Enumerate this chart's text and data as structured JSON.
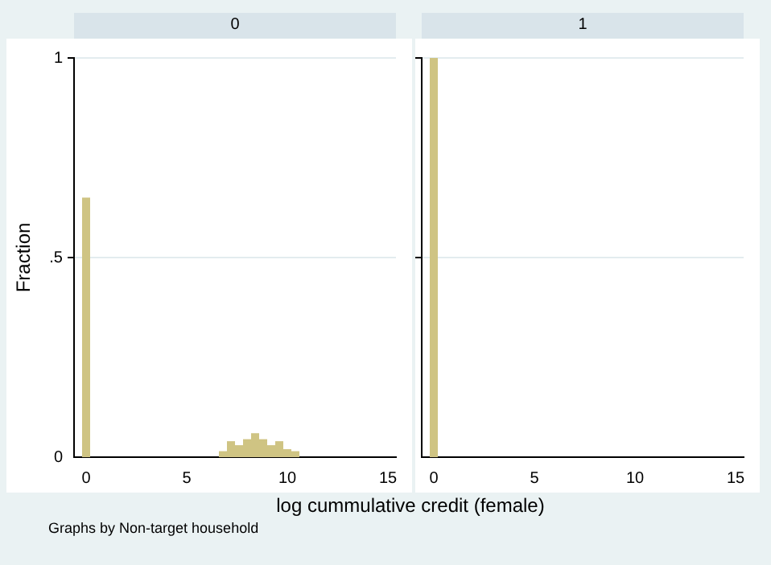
{
  "chart_data": [
    {
      "type": "histogram",
      "title": "0",
      "xlabel": "log cummulative credit (female)",
      "ylabel": "Fraction",
      "annotations": [
        "Graphs by Non-target household"
      ],
      "color": "#cfc483",
      "bins": [
        -0.2,
        0.2,
        0.6,
        1.0,
        1.4,
        1.8,
        2.2,
        2.6,
        3.0,
        3.4,
        3.8,
        4.2,
        4.6,
        5.0,
        5.4,
        5.8,
        6.2,
        6.6,
        7.0,
        7.4,
        7.8,
        8.2,
        8.6,
        9.0,
        9.4,
        9.8,
        10.2,
        10.6
      ],
      "values": [
        0.65,
        0,
        0,
        0,
        0,
        0,
        0,
        0,
        0,
        0,
        0,
        0,
        0,
        0,
        0,
        0,
        0,
        0.015,
        0.04,
        0.03,
        0.045,
        0.06,
        0.045,
        0.03,
        0.04,
        0.02,
        0.015
      ],
      "xlim": [
        -0.6,
        15.4
      ],
      "xticks": [
        0,
        5,
        10,
        15
      ],
      "ylim": [
        0,
        1
      ],
      "yticks": [
        0,
        {
          "value": 0.5,
          "label": ".5"
        },
        1
      ],
      "grid": "y"
    },
    {
      "type": "histogram",
      "title": "1",
      "color": "#cfc483",
      "bins": [
        -0.2,
        0.2
      ],
      "values": [
        1.0
      ],
      "xlim": [
        -0.6,
        15.4
      ],
      "xticks": [
        0,
        5,
        10,
        15
      ],
      "ylim": [
        0,
        1
      ],
      "yticks": [
        {
          "value": 0,
          "label": null
        },
        {
          "value": 0.5,
          "label": null
        },
        {
          "value": 1,
          "label": null
        }
      ],
      "grid": "y",
      "tick_labels": "x"
    }
  ]
}
